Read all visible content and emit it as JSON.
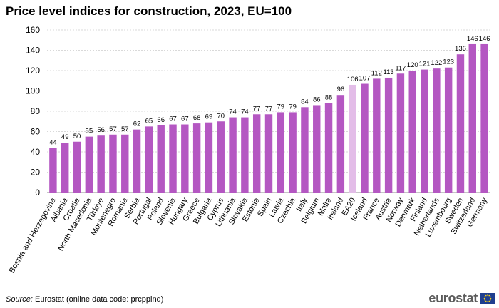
{
  "title": "Price level indices for construction, 2023, EU=100",
  "source": {
    "label": "Source:",
    "text": "Eurostat (online data code: prcppind)"
  },
  "logo": {
    "text": "eurostat",
    "flag_icon": "eu-flag-icon"
  },
  "colors": {
    "bar": "#b457c2",
    "highlight": "#e3bde8",
    "grid": "#d9d9d9"
  },
  "chart_data": {
    "type": "bar",
    "title": "Price level indices for construction, 2023, EU=100",
    "xlabel": "",
    "ylabel": "",
    "ylim": [
      0,
      160
    ],
    "yticks": [
      0,
      20,
      40,
      60,
      80,
      100,
      120,
      140,
      160
    ],
    "grid": true,
    "highlight": "EA20",
    "categories": [
      "Bosnia and Herzegovina",
      "Albania",
      "Croatia",
      "North Macedonia",
      "Türkiye",
      "Montenegro",
      "Romania",
      "Serbia",
      "Portugal",
      "Poland",
      "Slovenia",
      "Hungary",
      "Greece",
      "Bulgaria",
      "Cyprus",
      "Lithuania",
      "Slovakia",
      "Estonia",
      "Spain",
      "Latvia",
      "Czechia",
      "Italy",
      "Belgium",
      "Malta",
      "Ireland",
      "EA20",
      "Iceland",
      "France",
      "Austria",
      "Norway",
      "Denmark",
      "Finland",
      "Netherlands",
      "Luxembourg",
      "Sweden",
      "Switzerland",
      "Germany"
    ],
    "values": [
      44,
      49,
      50,
      55,
      56,
      57,
      57,
      62,
      65,
      66,
      67,
      67,
      68,
      69,
      70,
      74,
      74,
      77,
      77,
      79,
      79,
      84,
      86,
      88,
      96,
      106,
      107,
      112,
      113,
      117,
      120,
      121,
      122,
      123,
      136,
      146,
      146
    ]
  }
}
